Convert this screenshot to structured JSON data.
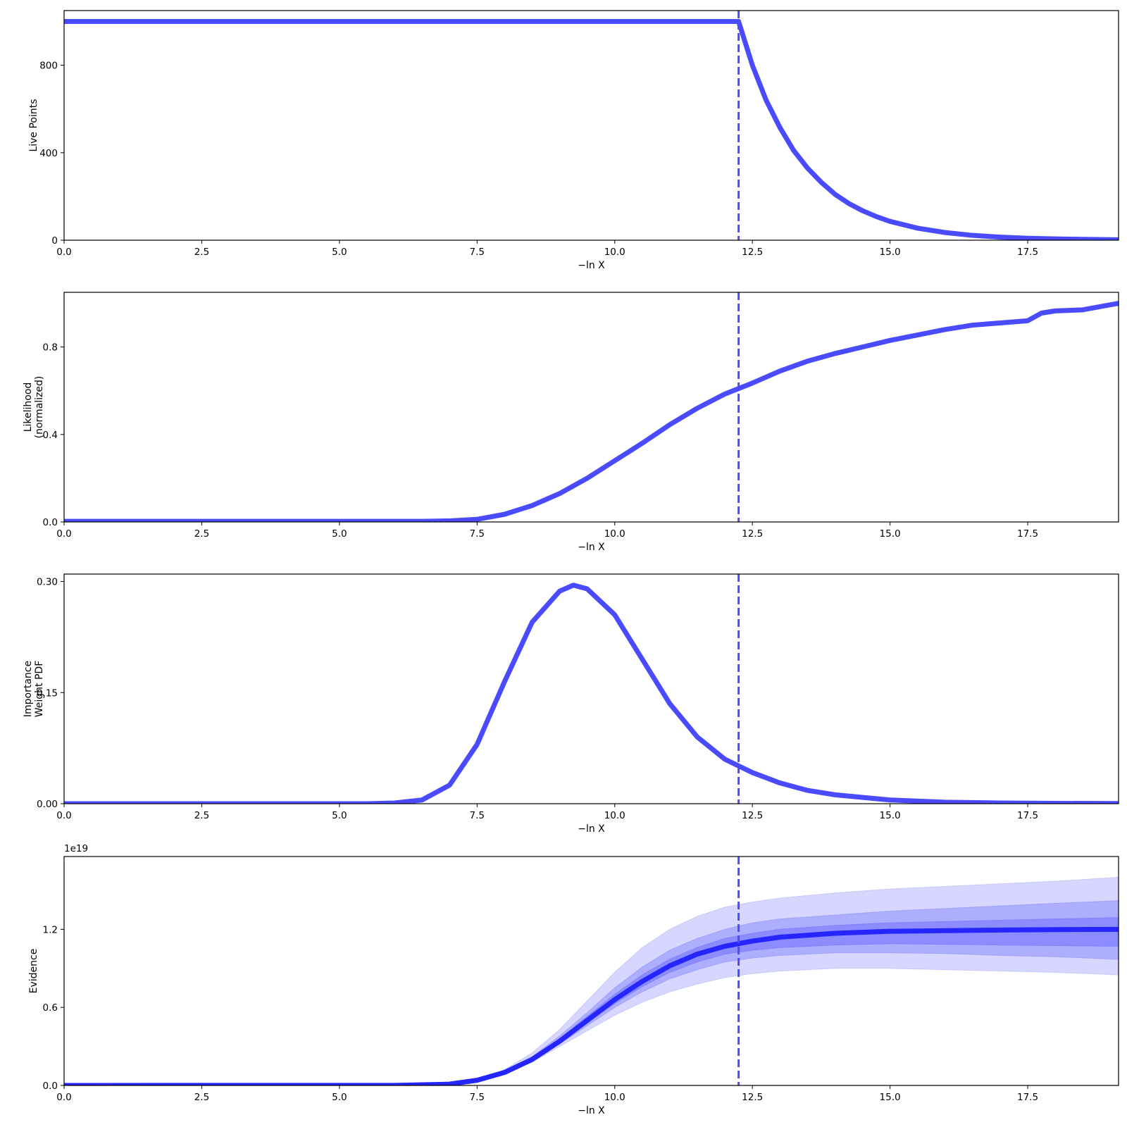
{
  "colors": {
    "line": "#4a4aff",
    "evidence_line": "#2525ff",
    "band_outer": "#c8c8ff",
    "band_mid": "#a0a0ff",
    "band_inner": "#8080ff",
    "axes": "#000000",
    "background": "#ffffff"
  },
  "chart_data": [
    {
      "type": "line",
      "ylabel": [
        "Live Points"
      ],
      "xlabel": "−ln X",
      "xlim": [
        0,
        19.15
      ],
      "ylim": [
        0,
        1050
      ],
      "xticks": [
        0,
        2.5,
        5,
        7.5,
        10,
        12.5,
        15,
        17.5
      ],
      "xtick_labels": [
        "0.0",
        "2.5",
        "5.0",
        "7.5",
        "10.0",
        "12.5",
        "15.0",
        "17.5"
      ],
      "yticks": [
        0,
        400,
        800
      ],
      "ytick_labels": [
        "0",
        "400",
        "800"
      ],
      "vline": 12.25,
      "series": [
        {
          "x": [
            0,
            12.25,
            12.5,
            12.75,
            13,
            13.25,
            13.5,
            13.75,
            14,
            14.25,
            14.5,
            14.75,
            15,
            15.5,
            16,
            16.5,
            17,
            17.5,
            18,
            18.5,
            19.15
          ],
          "y": [
            1000,
            1000,
            800,
            640,
            515,
            410,
            330,
            265,
            210,
            168,
            135,
            108,
            86,
            55,
            35,
            22,
            14,
            9,
            6,
            4,
            2
          ]
        }
      ]
    },
    {
      "type": "line",
      "ylabel": [
        "Likelihood",
        "(normalized)"
      ],
      "xlabel": "−ln X",
      "xlim": [
        0,
        19.15
      ],
      "ylim": [
        0,
        1.05
      ],
      "xticks": [
        0,
        2.5,
        5,
        7.5,
        10,
        12.5,
        15,
        17.5
      ],
      "xtick_labels": [
        "0.0",
        "2.5",
        "5.0",
        "7.5",
        "10.0",
        "12.5",
        "15.0",
        "17.5"
      ],
      "yticks": [
        0,
        0.4,
        0.8
      ],
      "ytick_labels": [
        "0.0",
        "0.4",
        "0.8"
      ],
      "vline": 12.25,
      "series": [
        {
          "x": [
            0,
            5,
            6.5,
            7,
            7.5,
            8,
            8.5,
            9,
            9.5,
            10,
            10.5,
            11,
            11.5,
            12,
            12.25,
            12.5,
            13,
            13.5,
            14,
            14.5,
            15,
            15.5,
            16,
            16.5,
            17,
            17.5,
            17.75,
            18,
            18.5,
            19.15
          ],
          "y": [
            0.003,
            0.003,
            0.003,
            0.005,
            0.012,
            0.035,
            0.075,
            0.13,
            0.2,
            0.28,
            0.36,
            0.445,
            0.52,
            0.585,
            0.61,
            0.635,
            0.69,
            0.735,
            0.77,
            0.8,
            0.83,
            0.855,
            0.88,
            0.9,
            0.91,
            0.92,
            0.955,
            0.965,
            0.97,
            1.0
          ]
        }
      ]
    },
    {
      "type": "line",
      "ylabel": [
        "Importance",
        "Weight PDF"
      ],
      "xlabel": "−ln X",
      "xlim": [
        0,
        19.15
      ],
      "ylim": [
        0,
        0.31
      ],
      "xticks": [
        0,
        2.5,
        5,
        7.5,
        10,
        12.5,
        15,
        17.5
      ],
      "xtick_labels": [
        "0.0",
        "2.5",
        "5.0",
        "7.5",
        "10.0",
        "12.5",
        "15.0",
        "17.5"
      ],
      "yticks": [
        0,
        0.15,
        0.3
      ],
      "ytick_labels": [
        "0.00",
        "0.15",
        "0.30"
      ],
      "vline": 12.25,
      "series": [
        {
          "x": [
            0,
            5.5,
            6,
            6.5,
            7,
            7.5,
            8,
            8.5,
            9,
            9.25,
            9.5,
            10,
            10.5,
            11,
            11.5,
            12,
            12.5,
            13,
            13.5,
            14,
            15,
            16,
            17,
            18,
            19.15
          ],
          "y": [
            0,
            0,
            0.001,
            0.005,
            0.025,
            0.08,
            0.165,
            0.245,
            0.287,
            0.295,
            0.29,
            0.255,
            0.195,
            0.135,
            0.09,
            0.06,
            0.042,
            0.028,
            0.018,
            0.012,
            0.005,
            0.002,
            0.001,
            0.0005,
            0.0002
          ]
        }
      ]
    },
    {
      "type": "area",
      "ylabel": [
        "Evidence"
      ],
      "xlabel": "−ln X",
      "offset_text": "1e19",
      "xlim": [
        0,
        19.15
      ],
      "ylim": [
        0,
        1.76
      ],
      "xticks": [
        0,
        2.5,
        5,
        7.5,
        10,
        12.5,
        15,
        17.5
      ],
      "xtick_labels": [
        "0.0",
        "2.5",
        "5.0",
        "7.5",
        "10.0",
        "12.5",
        "15.0",
        "17.5"
      ],
      "yticks": [
        0,
        0.6,
        1.2
      ],
      "ytick_labels": [
        "0.0",
        "0.6",
        "1.2"
      ],
      "vline": 12.25,
      "x": [
        0,
        6,
        7,
        7.5,
        8,
        8.5,
        9,
        9.5,
        10,
        10.5,
        11,
        11.5,
        12,
        12.5,
        13,
        14,
        15,
        16,
        17,
        18,
        19.15
      ],
      "median": [
        0,
        0.001,
        0.01,
        0.04,
        0.1,
        0.2,
        0.34,
        0.5,
        0.66,
        0.8,
        0.92,
        1.01,
        1.07,
        1.11,
        1.14,
        1.17,
        1.185,
        1.19,
        1.195,
        1.198,
        1.2
      ],
      "bands": [
        {
          "lower": [
            0,
            0.001,
            0.009,
            0.035,
            0.09,
            0.18,
            0.3,
            0.42,
            0.54,
            0.64,
            0.72,
            0.78,
            0.83,
            0.86,
            0.88,
            0.9,
            0.9,
            0.89,
            0.88,
            0.87,
            0.85
          ],
          "upper": [
            0,
            0.001,
            0.012,
            0.05,
            0.12,
            0.25,
            0.43,
            0.65,
            0.87,
            1.06,
            1.2,
            1.3,
            1.37,
            1.41,
            1.44,
            1.48,
            1.51,
            1.53,
            1.55,
            1.57,
            1.6
          ]
        },
        {
          "lower": [
            0,
            0.001,
            0.0095,
            0.037,
            0.094,
            0.19,
            0.32,
            0.46,
            0.6,
            0.72,
            0.82,
            0.89,
            0.95,
            0.98,
            1.0,
            1.02,
            1.02,
            1.015,
            1.0,
            0.99,
            0.97
          ],
          "upper": [
            0,
            0.001,
            0.011,
            0.045,
            0.11,
            0.22,
            0.38,
            0.56,
            0.75,
            0.91,
            1.04,
            1.13,
            1.2,
            1.25,
            1.28,
            1.31,
            1.34,
            1.36,
            1.38,
            1.4,
            1.42
          ]
        },
        {
          "lower": [
            0,
            0.001,
            0.0098,
            0.038,
            0.097,
            0.195,
            0.33,
            0.48,
            0.63,
            0.76,
            0.87,
            0.95,
            1.01,
            1.04,
            1.06,
            1.08,
            1.09,
            1.085,
            1.08,
            1.075,
            1.07
          ],
          "upper": [
            0,
            0.001,
            0.0105,
            0.042,
            0.105,
            0.21,
            0.36,
            0.53,
            0.7,
            0.85,
            0.97,
            1.06,
            1.13,
            1.17,
            1.2,
            1.23,
            1.25,
            1.26,
            1.27,
            1.28,
            1.29
          ]
        }
      ]
    }
  ]
}
